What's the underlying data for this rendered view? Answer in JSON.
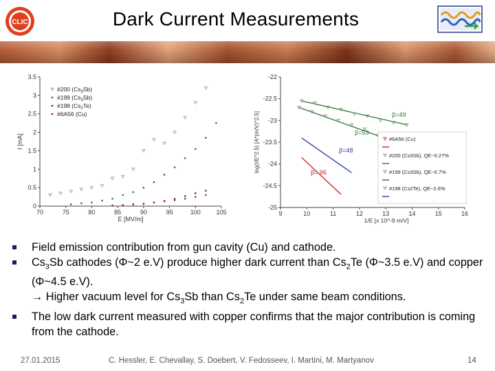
{
  "slide": {
    "title": "Dark Current Measurements",
    "logo_left_text": "CLIC"
  },
  "left_chart": {
    "ytick_labels": [
      "3.5",
      "3",
      "2.5",
      "2",
      "1.5",
      "1",
      "0.5",
      "0"
    ],
    "xtick_labels": [
      "70",
      "75",
      "80",
      "85",
      "90",
      "95",
      "100",
      "105"
    ],
    "ylabel": "I [mA]",
    "xlabel": "E [MV/m]",
    "legend": [
      {
        "text": "#200 (Cs",
        "sub": "3",
        "tail": "Sb)",
        "color": "#9a9a9a",
        "marker": "triangle"
      },
      {
        "text": "#199 (Cs",
        "sub": "3",
        "tail": "Sb)",
        "color": "#2a7a2a",
        "marker": "dot"
      },
      {
        "text": "#198 (Cs",
        "sub": "2",
        "tail": "Te)",
        "color": "#2a3aa0",
        "marker": "dot"
      },
      {
        "text": "#6A56 (Cu)",
        "sub": "",
        "tail": "",
        "color": "#c02020",
        "marker": "dot"
      }
    ]
  },
  "right_chart": {
    "ytick_labels": [
      "-22",
      "-22.5",
      "-23",
      "-23.5",
      "-24",
      "-24.5",
      "-25"
    ],
    "xtick_labels": [
      "9",
      "10",
      "11",
      "12",
      "13",
      "14",
      "15",
      "16"
    ],
    "ylabel": "log(I/E^2.5) [A*(m/V)^2.5]",
    "xlabel": "1/E [x 10^-9 m/V]",
    "annotations": [
      "β=49",
      "β=53",
      "β=48",
      "β= 96"
    ],
    "legend": [
      "#6A56 (Cu)",
      "#200 (Cs3Sb), QE~0.27%",
      "#199 (Cs3Sb), QE~0.7%",
      "#198 (Cs2Te), QE~2.6%"
    ]
  },
  "chart_data": [
    {
      "type": "scatter",
      "xlabel": "E [MV/m]",
      "ylabel": "I [mA]",
      "xlim": [
        70,
        105
      ],
      "ylim": [
        0,
        3.5
      ],
      "series": [
        {
          "name": "#200 (Cs3Sb)",
          "x": [
            72,
            74,
            76,
            78,
            80,
            82,
            84,
            86,
            88,
            90,
            92,
            94,
            96,
            98,
            100,
            102
          ],
          "y": [
            0.3,
            0.35,
            0.4,
            0.45,
            0.5,
            0.55,
            0.75,
            0.8,
            1.0,
            1.5,
            1.8,
            1.7,
            2.0,
            2.4,
            2.8,
            3.2
          ]
        },
        {
          "name": "#199 (Cs3Sb)",
          "x": [
            76,
            78,
            80,
            82,
            84,
            86,
            88,
            90,
            92,
            94,
            96,
            98,
            100,
            102,
            104
          ],
          "y": [
            0.05,
            0.08,
            0.1,
            0.15,
            0.2,
            0.3,
            0.38,
            0.5,
            0.65,
            0.85,
            1.05,
            1.3,
            1.55,
            1.85,
            2.25
          ]
        },
        {
          "name": "#198 (Cs2Te)",
          "x": [
            86,
            88,
            90,
            92,
            94,
            96,
            98,
            100,
            102
          ],
          "y": [
            0.02,
            0.04,
            0.06,
            0.1,
            0.14,
            0.2,
            0.27,
            0.35,
            0.42
          ]
        },
        {
          "name": "#6A56 (Cu)",
          "x": [
            84,
            86,
            88,
            90,
            92,
            94,
            96,
            98,
            100,
            102
          ],
          "y": [
            0.02,
            0.03,
            0.05,
            0.07,
            0.1,
            0.13,
            0.16,
            0.2,
            0.25,
            0.3
          ]
        }
      ]
    },
    {
      "type": "scatter",
      "xlabel": "1/E [x 10^-9 m/V]",
      "ylabel": "log(I/E^2.5) [A*(m/V)^2.5]",
      "xlim": [
        9,
        16
      ],
      "ylim": [
        -25,
        -22
      ],
      "series": [
        {
          "name": "#200 (Cs3Sb), QE~0.27%",
          "x": [
            9.8,
            10.3,
            10.8,
            11.3,
            11.8,
            12.3,
            12.8,
            13.3,
            13.8
          ],
          "y": [
            -22.55,
            -22.6,
            -22.7,
            -22.75,
            -22.85,
            -22.9,
            -23.0,
            -23.05,
            -23.1
          ]
        },
        {
          "name": "#199 (Cs3Sb), QE~0.7%",
          "x": [
            9.7,
            10.2,
            10.7,
            11.2,
            11.7,
            12.2,
            12.7
          ],
          "y": [
            -22.7,
            -22.8,
            -22.9,
            -23.0,
            -23.1,
            -23.2,
            -23.35
          ]
        },
        {
          "name": "#198 (Cs2Te), QE~2.6%",
          "x": [
            9.8,
            10.3,
            10.8,
            11.3,
            11.7
          ],
          "y": [
            -23.4,
            -23.6,
            -23.85,
            -24.05,
            -24.2
          ]
        },
        {
          "name": "#6A56 (Cu)",
          "x": [
            9.8,
            10.2,
            10.6,
            11.0,
            11.3
          ],
          "y": [
            -23.85,
            -24.05,
            -24.3,
            -24.55,
            -24.7
          ]
        }
      ]
    }
  ],
  "bullets": [
    {
      "id": "b1",
      "parts": [
        {
          "t": "Field emission contribution from gun cavity (Cu) and cathode."
        }
      ]
    },
    {
      "id": "b2",
      "parts": [
        {
          "t": "Cs"
        },
        {
          "sub": "3"
        },
        {
          "t": "Sb cathodes ("
        },
        {
          "phi": "Φ"
        },
        {
          "t": "~2 e.V) produce higher dark current than Cs"
        },
        {
          "sub": "2"
        },
        {
          "t": "Te ("
        },
        {
          "phi": "Φ"
        },
        {
          "t": "~3.5 e.V) and copper ("
        },
        {
          "phi": "Φ"
        },
        {
          "t": "~4.5 e.V)."
        },
        {
          "br": true
        },
        {
          "t": "→ Higher vacuum level for Cs"
        },
        {
          "sub": "3"
        },
        {
          "t": "Sb than Cs"
        },
        {
          "sub": "2"
        },
        {
          "t": "Te under same beam conditions."
        }
      ]
    },
    {
      "id": "b3",
      "parts": [
        {
          "t": "The low dark current measured with copper confirms that the major contribution is coming from the cathode."
        }
      ]
    }
  ],
  "footer": {
    "date": "27.01.2015",
    "authors": "C. Hessler, E. Chevallay, S. Doebert, V. Fedosseev, I. Martini, M. Martyanov",
    "page": "14"
  },
  "colors": {
    "series_200": "#9a9a9a",
    "series_199": "#2a7a2a",
    "series_198": "#2a3aa0",
    "series_cu": "#c02020",
    "bullet": "#1a1a6a"
  }
}
